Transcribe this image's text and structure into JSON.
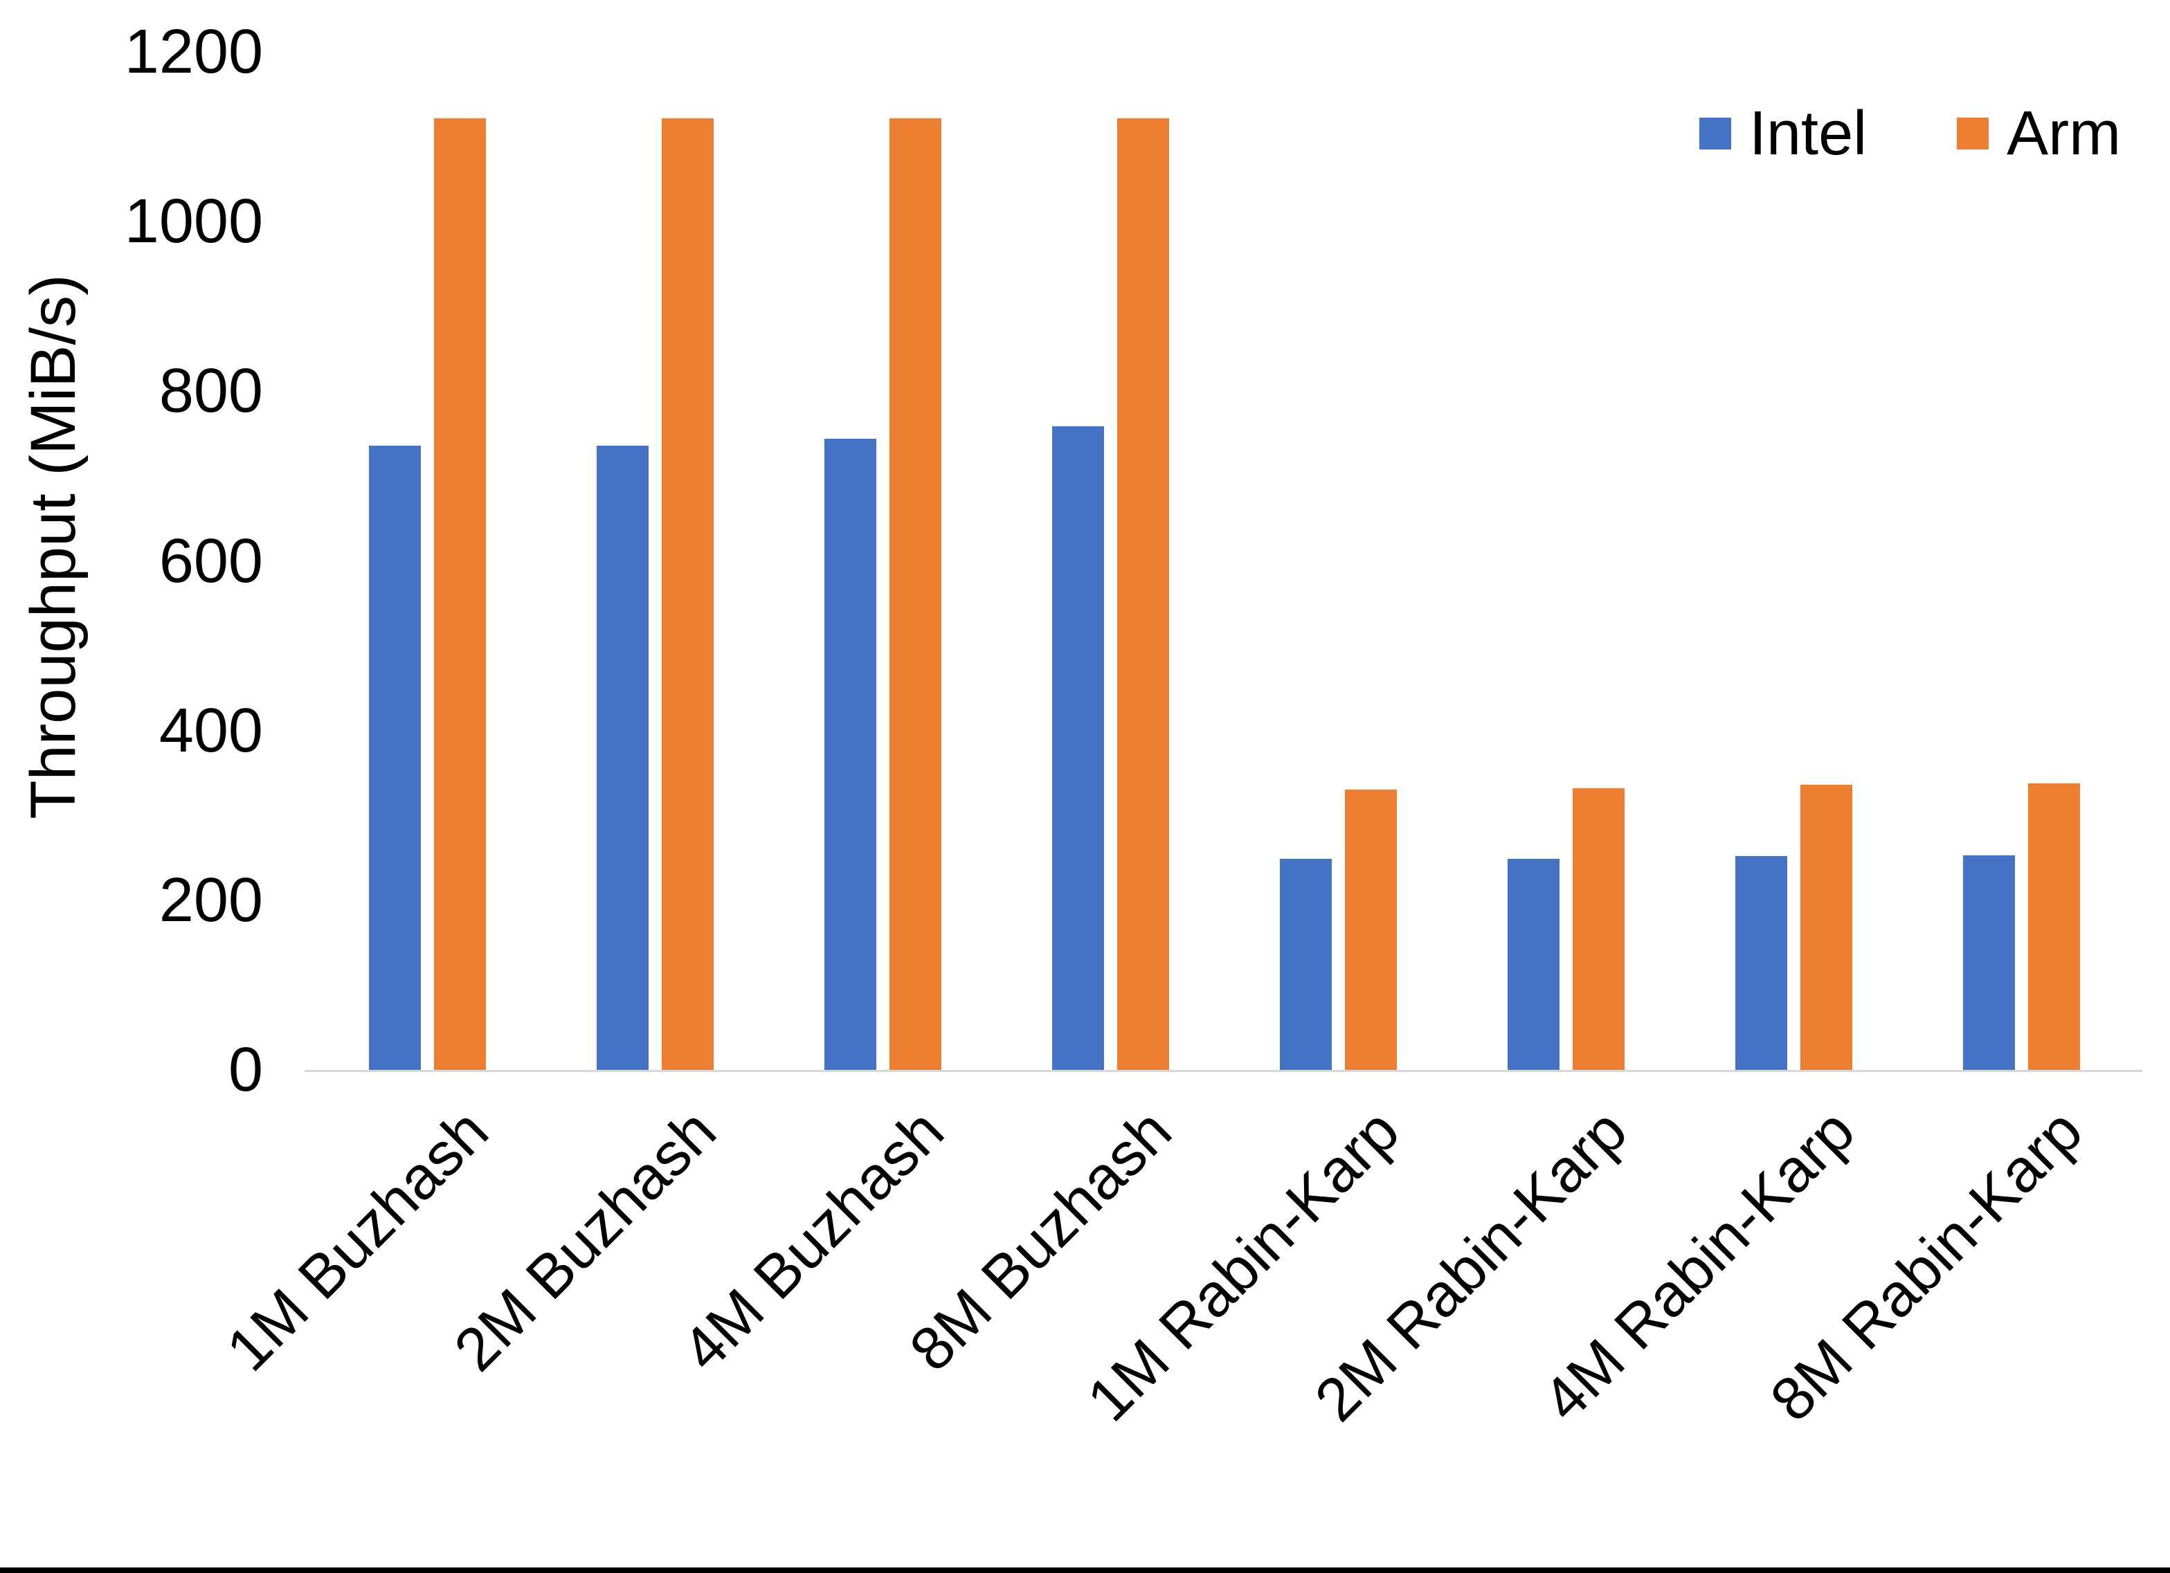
{
  "chart_data": {
    "type": "bar",
    "title": "",
    "xlabel": "",
    "ylabel": "Throughput (MiB/s)",
    "ylim": [
      0,
      1200
    ],
    "yticks": [
      0,
      200,
      400,
      600,
      800,
      1000,
      1200
    ],
    "grid": false,
    "legend_position": "top-right",
    "categories": [
      "1M Buzhash",
      "2M Buzhash",
      "4M Buzhash",
      "8M Buzhash",
      "1M Rabin-Karp",
      "2M Rabin-Karp",
      "4M Rabin-Karp",
      "8M Rabin-Karp"
    ],
    "series": [
      {
        "name": "Intel",
        "color": "#4472c4",
        "values": [
          736,
          736,
          744,
          759,
          249,
          249,
          252,
          253
        ]
      },
      {
        "name": "Arm",
        "color": "#ed7d31",
        "values": [
          1122,
          1122,
          1122,
          1122,
          330,
          332,
          336,
          338
        ]
      }
    ]
  }
}
